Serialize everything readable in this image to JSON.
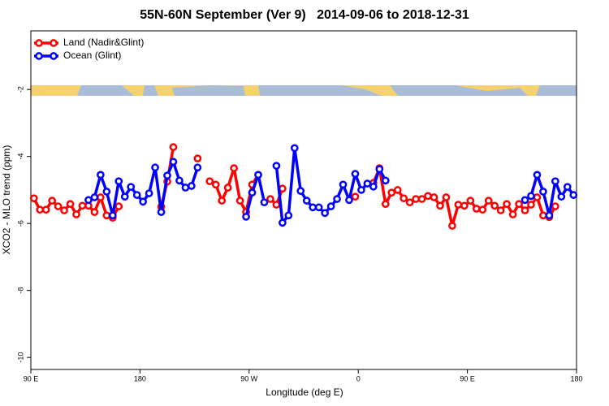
{
  "chart_data": {
    "type": "line",
    "title": "55N-60N September (Ver 9)   2014-09-06 to 2018-12-31",
    "x_label": "Longitude (deg E)",
    "y_label": "XCO2 - MLO trend (ppm)",
    "xlim": [
      90,
      540
    ],
    "xticks": [
      {
        "value": 90,
        "label": "90 E"
      },
      {
        "value": 180,
        "label": "180"
      },
      {
        "value": 270,
        "label": "90 W"
      },
      {
        "value": 360,
        "label": "0"
      },
      {
        "value": 450,
        "label": "90 E"
      },
      {
        "value": 540,
        "label": "180"
      }
    ],
    "ylim": [
      -10.36,
      -0.25
    ],
    "yticks": [
      -2,
      -4,
      -6,
      -8,
      -10
    ],
    "legend": "top-left",
    "x": [
      92.5,
      97.5,
      102.5,
      107.5,
      112.5,
      117.5,
      122.5,
      127.5,
      132.5,
      137.5,
      142.5,
      147.5,
      152.5,
      157.5,
      162.5,
      167.5,
      172.5,
      177.5,
      182.5,
      187.5,
      192.5,
      197.5,
      202.5,
      207.5,
      212.5,
      217.5,
      222.5,
      227.5,
      232.5,
      237.5,
      242.5,
      247.5,
      252.5,
      257.5,
      262.5,
      267.5,
      272.5,
      277.5,
      282.5,
      287.5,
      292.5,
      297.5,
      302.5,
      307.5,
      312.5,
      317.5,
      322.5,
      327.5,
      332.5,
      337.5,
      342.5,
      347.5,
      352.5,
      357.5,
      362.5,
      367.5,
      372.5,
      377.5,
      382.5,
      387.5,
      392.5,
      397.5,
      402.5,
      407.5,
      412.5,
      417.5,
      422.5,
      427.5,
      432.5,
      437.5,
      442.5,
      447.5,
      452.5,
      457.5,
      462.5,
      467.5,
      472.5,
      477.5,
      482.5,
      487.5,
      492.5,
      497.5,
      502.5,
      507.5,
      512.5,
      517.5,
      522.5,
      527.5,
      532.5,
      537.5
    ],
    "series": [
      {
        "name": "Land (Nadir&Glint)",
        "color": "#ff0000",
        "values": [
          -5.25,
          -5.59,
          -5.59,
          -5.32,
          -5.49,
          -5.61,
          -5.42,
          -5.73,
          -5.47,
          -5.47,
          -5.66,
          -5.22,
          -5.76,
          -5.83,
          -5.49,
          null,
          null,
          null,
          null,
          null,
          null,
          -5.5,
          -4.75,
          -3.72,
          null,
          null,
          null,
          -4.06,
          null,
          -4.74,
          -4.84,
          -5.32,
          -4.93,
          -4.35,
          -5.32,
          -5.66,
          -4.84,
          -4.55,
          null,
          -5.27,
          -5.44,
          -4.96,
          null,
          null,
          null,
          null,
          null,
          null,
          null,
          null,
          null,
          null,
          null,
          -5.2,
          null,
          null,
          -4.79,
          -4.35,
          -5.42,
          -5.08,
          -5.0,
          -5.25,
          -5.37,
          -5.27,
          -5.27,
          -5.18,
          -5.22,
          -5.47,
          -5.22,
          -6.07,
          -5.44,
          -5.47,
          -5.32,
          -5.56,
          -5.59,
          -5.32,
          -5.47,
          -5.61,
          -5.42,
          -5.73,
          -5.42,
          -5.61,
          -5.44,
          -5.22,
          -5.76,
          -5.81,
          -5.49,
          null,
          null,
          null
        ]
      },
      {
        "name": "Ocean (Glint)",
        "color": "#0000ff",
        "values": [
          null,
          null,
          null,
          null,
          null,
          null,
          null,
          null,
          null,
          -5.3,
          -5.22,
          -4.55,
          -5.05,
          -5.76,
          -4.74,
          -5.2,
          -4.91,
          -5.15,
          -5.35,
          -5.1,
          -4.33,
          -5.66,
          -4.57,
          -4.16,
          -4.72,
          -4.93,
          -4.88,
          -4.33,
          null,
          null,
          null,
          null,
          null,
          null,
          null,
          -5.8,
          -5.08,
          -4.55,
          -5.37,
          null,
          -4.28,
          -5.98,
          -5.76,
          -3.75,
          -5.03,
          -5.32,
          -5.52,
          -5.52,
          -5.69,
          -5.49,
          -5.27,
          -4.84,
          -5.3,
          -4.52,
          -5.0,
          -4.81,
          -4.9,
          -4.38,
          -4.72,
          null,
          null,
          null,
          null,
          null,
          null,
          null,
          null,
          null,
          null,
          null,
          null,
          null,
          null,
          null,
          null,
          null,
          null,
          null,
          null,
          null,
          null,
          -5.3,
          -5.18,
          -4.55,
          -5.05,
          -5.76,
          -4.74,
          -5.2,
          -4.91,
          -5.15
        ]
      }
    ]
  }
}
